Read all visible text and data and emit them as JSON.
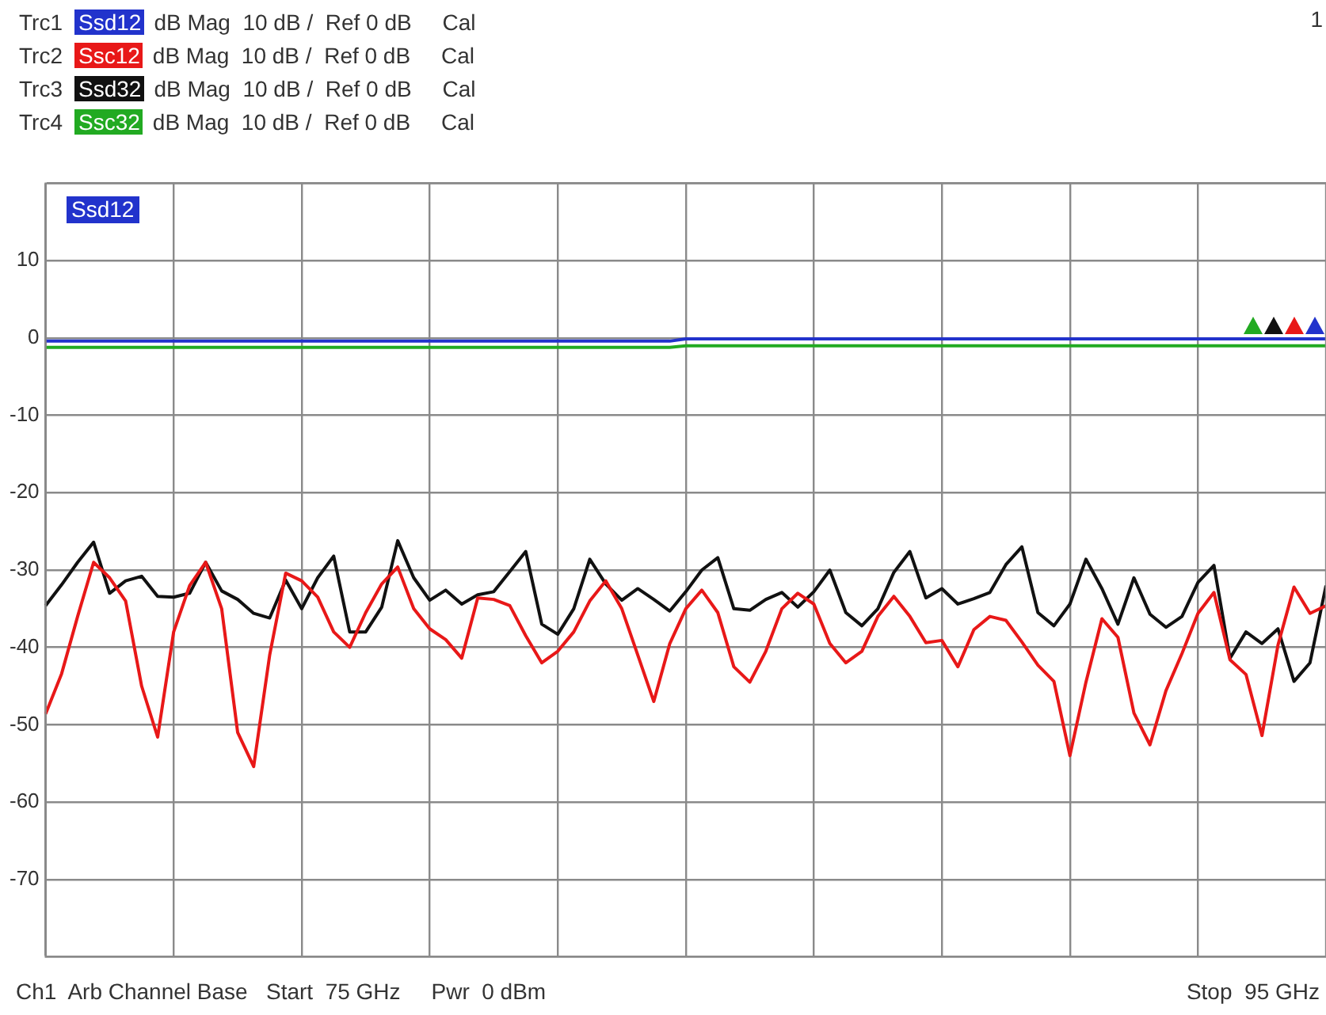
{
  "chart_data": {
    "type": "line",
    "legend": "top left",
    "grid": true,
    "tick_labels": "y",
    "categories": [
      null,
      null,
      null,
      null,
      null,
      null,
      null,
      null,
      null,
      null,
      null,
      null,
      null,
      null,
      null,
      null,
      null,
      null,
      null,
      null,
      null,
      null,
      null,
      null,
      null,
      null,
      null,
      null,
      null,
      null,
      null,
      null,
      null,
      null,
      null,
      null,
      null,
      null,
      null,
      null,
      null,
      null,
      null,
      null,
      null,
      null,
      null,
      null,
      null,
      null,
      null,
      null,
      null,
      null,
      null,
      null,
      null,
      null,
      null,
      null,
      null,
      null,
      null,
      null,
      null,
      null,
      null,
      null,
      null,
      null,
      null,
      null,
      null,
      null,
      null,
      null,
      null,
      null,
      null,
      null,
      null
    ],
    "ylim": [
      -80,
      20
    ],
    "yticks": [
      {
        "value": -80,
        "label": null
      },
      -70,
      -60,
      -50,
      -40,
      -30,
      -20,
      -10,
      0,
      10,
      {
        "value": 20,
        "label": null
      }
    ],
    "annotations": [
      "Trc1",
      "Trc2",
      "Trc3",
      "Trc4",
      "dB Mag  10 dB /  Ref 0 dB     Cal",
      "dB Mag  10 dB /  Ref 0 dB     Cal",
      "dB Mag  10 dB /  Ref 0 dB     Cal",
      "dB Mag  10 dB /  Ref 0 dB     Cal",
      "Ssd12",
      "1",
      "Ch1  Arb Channel Base   Start  75 GHz     Pwr  0 dBm",
      "Stop  95 GHz"
    ],
    "series": [
      {
        "name": "Ssd12",
        "color": "#2233cc",
        "values": [
          -0.4,
          -0.4,
          -0.4,
          -0.4,
          -0.4,
          -0.4,
          -0.4,
          -0.4,
          -0.4,
          -0.4,
          -0.4,
          -0.4,
          -0.4,
          -0.4,
          -0.4,
          -0.4,
          -0.4,
          -0.4,
          -0.4,
          -0.4,
          -0.4,
          -0.4,
          -0.4,
          -0.4,
          -0.4,
          -0.4,
          -0.4,
          -0.4,
          -0.4,
          -0.4,
          -0.4,
          -0.4,
          -0.4,
          -0.4,
          -0.4,
          -0.4,
          -0.4,
          -0.4,
          -0.4,
          -0.4,
          -0.1,
          -0.1,
          -0.1,
          -0.1,
          -0.1,
          -0.1,
          -0.1,
          -0.1,
          -0.1,
          -0.1,
          -0.1,
          -0.1,
          -0.1,
          -0.1,
          -0.1,
          -0.1,
          -0.1,
          -0.1,
          -0.1,
          -0.1,
          -0.1,
          -0.1,
          -0.1,
          -0.1,
          -0.1,
          -0.1,
          -0.1,
          -0.1,
          -0.1,
          -0.1,
          -0.1,
          -0.1,
          -0.1,
          -0.1,
          -0.1,
          -0.1,
          -0.1,
          -0.1,
          -0.1,
          -0.1,
          -0.1
        ]
      },
      {
        "name": "Ssc12",
        "color": "#e81818",
        "values": [
          -48.6,
          -43.4,
          -36,
          -29,
          -31,
          -34,
          -45,
          -51.6,
          -38,
          -32,
          -29,
          -35,
          -51,
          -55.4,
          -41,
          -30.4,
          -31.4,
          -33.5,
          -38,
          -40,
          -35.5,
          -31.8,
          -29.6,
          -35,
          -37.6,
          -39,
          -41.4,
          -33.6,
          -33.8,
          -34.6,
          -38.5,
          -42,
          -40.5,
          -38,
          -34,
          -31.4,
          -35,
          -41,
          -47,
          -39.5,
          -35,
          -32.6,
          -35.5,
          -42.5,
          -44.5,
          -40.5,
          -35,
          -33,
          -34.4,
          -39.5,
          -42,
          -40.5,
          -36,
          -33.4,
          -36,
          -39.4,
          -39.1,
          -42.5,
          -37.7,
          -36,
          -36.5,
          -39.3,
          -42.3,
          -44.4,
          -54,
          -44.5,
          -36.3,
          -38.7,
          -48.5,
          -52.6,
          -45.6,
          -40.8,
          -35.6,
          -32.9,
          -41.6,
          -43.5,
          -51.4,
          -39.7,
          -32.2,
          -35.6,
          -34.6
        ]
      },
      {
        "name": "Ssd32",
        "color": "#111111",
        "values": [
          -34.6,
          -31.9,
          -29,
          -26.4,
          -33,
          -31.4,
          -30.8,
          -33.4,
          -33.5,
          -33,
          -29,
          -32.7,
          -33.8,
          -35.6,
          -36.2,
          -31.3,
          -35,
          -31,
          -28.2,
          -38,
          -38,
          -34.8,
          -26.2,
          -31,
          -33.9,
          -32.6,
          -34.4,
          -33.2,
          -32.8,
          -30.2,
          -27.6,
          -37,
          -38.3,
          -35,
          -28.6,
          -31.8,
          -33.9,
          -32.4,
          -33.8,
          -35.3,
          -32.8,
          -30,
          -28.4,
          -35,
          -35.2,
          -33.8,
          -32.9,
          -34.8,
          -32.8,
          -30,
          -35.5,
          -37.2,
          -35,
          -30.3,
          -27.6,
          -33.6,
          -32.4,
          -34.4,
          -33.7,
          -32.9,
          -29.3,
          -27,
          -35.5,
          -37.2,
          -34.4,
          -28.6,
          -32.4,
          -37,
          -31,
          -35.7,
          -37.4,
          -36,
          -31.6,
          -29.4,
          -41.4,
          -38,
          -39.5,
          -37.6,
          -44.4,
          -42,
          -32
        ]
      },
      {
        "name": "Ssc32",
        "color": "#22aa22",
        "values": [
          -1.2,
          -1.2,
          -1.2,
          -1.2,
          -1.2,
          -1.2,
          -1.2,
          -1.2,
          -1.2,
          -1.2,
          -1.2,
          -1.2,
          -1.2,
          -1.2,
          -1.2,
          -1.2,
          -1.2,
          -1.2,
          -1.2,
          -1.2,
          -1.2,
          -1.2,
          -1.2,
          -1.2,
          -1.2,
          -1.2,
          -1.2,
          -1.2,
          -1.2,
          -1.2,
          -1.2,
          -1.2,
          -1.2,
          -1.2,
          -1.2,
          -1.2,
          -1.2,
          -1.2,
          -1.2,
          -1.2,
          -1,
          -1,
          -1,
          -1,
          -1,
          -1,
          -1,
          -1,
          -1,
          -1,
          -1,
          -1,
          -1,
          -1,
          -1,
          -1,
          -1,
          -1,
          -1,
          -1,
          -1,
          -1,
          -1,
          -1,
          -1,
          -1,
          -1,
          -1,
          -1,
          -1,
          -1,
          -1,
          -1,
          -1,
          -1,
          -1,
          -1,
          -1,
          -1,
          -1,
          -1
        ]
      }
    ]
  }
}
